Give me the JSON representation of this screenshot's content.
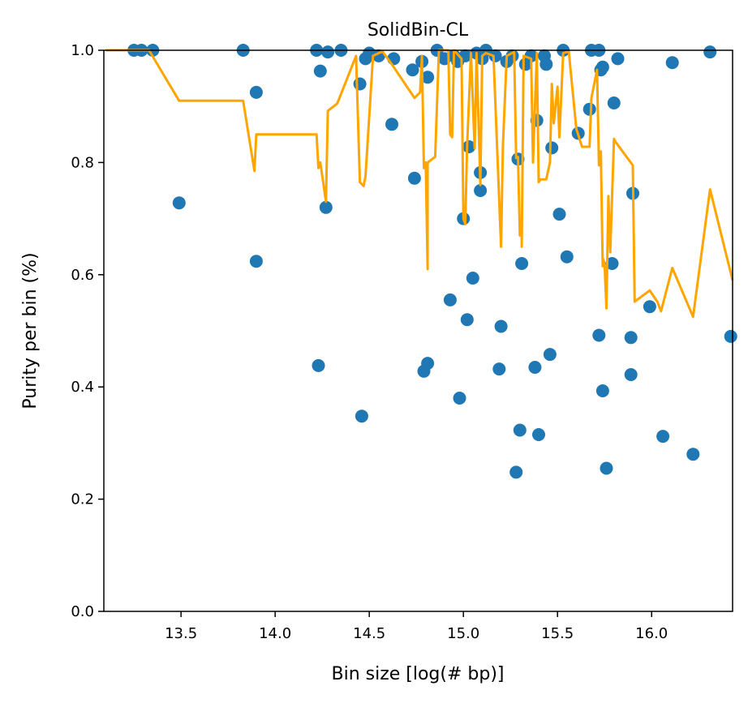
{
  "chart_data": {
    "type": "scatter",
    "title": "SolidBin-CL",
    "xlabel": "Bin size [log(# bp)]",
    "ylabel": "Purity per bin (%)",
    "xlim": [
      13.09,
      16.43
    ],
    "ylim": [
      0,
      1.0
    ],
    "x_ticks": [
      "13.5",
      "14.0",
      "14.5",
      "15.0",
      "15.5",
      "16.0"
    ],
    "y_ticks": [
      "0.0",
      "0.2",
      "0.4",
      "0.6",
      "0.8",
      "1.0"
    ],
    "grid": false,
    "legend": "none",
    "colors": {
      "points": "#1f77b4",
      "line": "#ffa500"
    },
    "series": [
      {
        "kind": "scatter",
        "points": [
          [
            13.25,
            1.0
          ],
          [
            13.29,
            1.0
          ],
          [
            13.35,
            1.0
          ],
          [
            13.49,
            0.728
          ],
          [
            13.83,
            1.0
          ],
          [
            13.9,
            0.925
          ],
          [
            13.9,
            0.624
          ],
          [
            14.22,
            1.0
          ],
          [
            14.23,
            0.438
          ],
          [
            14.24,
            0.963
          ],
          [
            14.27,
            0.72
          ],
          [
            14.28,
            0.997
          ],
          [
            14.35,
            1.0
          ],
          [
            14.45,
            0.94
          ],
          [
            14.46,
            0.348
          ],
          [
            14.48,
            0.985
          ],
          [
            14.5,
            0.995
          ],
          [
            14.55,
            0.99
          ],
          [
            14.62,
            0.868
          ],
          [
            14.63,
            0.985
          ],
          [
            14.73,
            0.965
          ],
          [
            14.74,
            0.772
          ],
          [
            14.78,
            0.98
          ],
          [
            14.79,
            0.428
          ],
          [
            14.81,
            0.442
          ],
          [
            14.81,
            0.952
          ],
          [
            14.86,
            1.0
          ],
          [
            14.9,
            0.985
          ],
          [
            14.93,
            0.555
          ],
          [
            14.95,
            0.99
          ],
          [
            14.97,
            0.98
          ],
          [
            14.98,
            0.38
          ],
          [
            15.0,
            0.7
          ],
          [
            15.01,
            0.99
          ],
          [
            15.02,
            0.52
          ],
          [
            15.03,
            0.828
          ],
          [
            15.05,
            0.594
          ],
          [
            15.07,
            0.995
          ],
          [
            15.09,
            0.782
          ],
          [
            15.09,
            0.75
          ],
          [
            15.1,
            0.985
          ],
          [
            15.12,
            1.0
          ],
          [
            15.17,
            0.99
          ],
          [
            15.19,
            0.432
          ],
          [
            15.2,
            0.508
          ],
          [
            15.23,
            0.98
          ],
          [
            15.26,
            0.99
          ],
          [
            15.28,
            0.248
          ],
          [
            15.29,
            0.806
          ],
          [
            15.3,
            0.323
          ],
          [
            15.31,
            0.62
          ],
          [
            15.33,
            0.975
          ],
          [
            15.36,
            0.99
          ],
          [
            15.38,
            0.435
          ],
          [
            15.39,
            0.875
          ],
          [
            15.4,
            0.315
          ],
          [
            15.43,
            0.99
          ],
          [
            15.44,
            0.975
          ],
          [
            15.46,
            0.458
          ],
          [
            15.47,
            0.826
          ],
          [
            15.51,
            0.708
          ],
          [
            15.53,
            1.0
          ],
          [
            15.55,
            0.632
          ],
          [
            15.61,
            0.852
          ],
          [
            15.67,
            0.895
          ],
          [
            15.68,
            1.0
          ],
          [
            15.72,
            1.0
          ],
          [
            15.72,
            0.492
          ],
          [
            15.73,
            0.965
          ],
          [
            15.74,
            0.97
          ],
          [
            15.74,
            0.393
          ],
          [
            15.76,
            0.255
          ],
          [
            15.79,
            0.62
          ],
          [
            15.8,
            0.906
          ],
          [
            15.82,
            0.985
          ],
          [
            15.89,
            0.488
          ],
          [
            15.89,
            0.422
          ],
          [
            15.9,
            0.745
          ],
          [
            15.99,
            0.543
          ],
          [
            16.06,
            0.312
          ],
          [
            16.11,
            0.978
          ],
          [
            16.22,
            0.28
          ],
          [
            16.31,
            0.997
          ],
          [
            16.42,
            0.49
          ]
        ]
      },
      {
        "kind": "line",
        "points": [
          [
            13.1,
            1.0
          ],
          [
            13.33,
            1.0
          ],
          [
            13.49,
            0.91
          ],
          [
            13.83,
            0.91
          ],
          [
            13.89,
            0.785
          ],
          [
            13.9,
            0.85
          ],
          [
            14.22,
            0.85
          ],
          [
            14.23,
            0.79
          ],
          [
            14.24,
            0.8
          ],
          [
            14.27,
            0.73
          ],
          [
            14.28,
            0.892
          ],
          [
            14.33,
            0.905
          ],
          [
            14.43,
            0.99
          ],
          [
            14.45,
            0.765
          ],
          [
            14.47,
            0.758
          ],
          [
            14.48,
            0.775
          ],
          [
            14.52,
            0.99
          ],
          [
            14.57,
            0.998
          ],
          [
            14.62,
            0.975
          ],
          [
            14.74,
            0.915
          ],
          [
            14.77,
            0.925
          ],
          [
            14.78,
            0.99
          ],
          [
            14.79,
            0.79
          ],
          [
            14.8,
            0.8
          ],
          [
            14.81,
            0.61
          ],
          [
            14.81,
            0.8
          ],
          [
            14.85,
            0.81
          ],
          [
            14.87,
            1.0
          ],
          [
            14.92,
            1.0
          ],
          [
            14.93,
            0.85
          ],
          [
            14.94,
            0.845
          ],
          [
            14.95,
            1.0
          ],
          [
            14.99,
            0.985
          ],
          [
            15.0,
            0.7
          ],
          [
            15.01,
            0.69
          ],
          [
            15.02,
            0.83
          ],
          [
            15.04,
            0.995
          ],
          [
            15.06,
            0.825
          ],
          [
            15.07,
            0.995
          ],
          [
            15.09,
            0.76
          ],
          [
            15.09,
            0.76
          ],
          [
            15.1,
            0.99
          ],
          [
            15.12,
            0.995
          ],
          [
            15.16,
            0.99
          ],
          [
            15.2,
            0.65
          ],
          [
            15.21,
            0.83
          ],
          [
            15.23,
            0.99
          ],
          [
            15.27,
            0.997
          ],
          [
            15.28,
            0.808
          ],
          [
            15.29,
            0.81
          ],
          [
            15.3,
            0.67
          ],
          [
            15.31,
            0.69
          ],
          [
            15.31,
            0.65
          ],
          [
            15.32,
            0.99
          ],
          [
            15.36,
            0.985
          ],
          [
            15.37,
            0.8
          ],
          [
            15.39,
            0.995
          ],
          [
            15.4,
            0.765
          ],
          [
            15.41,
            0.77
          ],
          [
            15.43,
            0.77
          ],
          [
            15.44,
            0.77
          ],
          [
            15.46,
            0.8
          ],
          [
            15.47,
            0.94
          ],
          [
            15.48,
            0.87
          ],
          [
            15.5,
            0.935
          ],
          [
            15.51,
            0.845
          ],
          [
            15.53,
            0.995
          ],
          [
            15.56,
            0.998
          ],
          [
            15.6,
            0.86
          ],
          [
            15.63,
            0.828
          ],
          [
            15.67,
            0.828
          ],
          [
            15.68,
            0.915
          ],
          [
            15.71,
            0.965
          ],
          [
            15.72,
            0.795
          ],
          [
            15.73,
            0.82
          ],
          [
            15.74,
            0.615
          ],
          [
            15.74,
            0.63
          ],
          [
            15.75,
            0.62
          ],
          [
            15.76,
            0.54
          ],
          [
            15.77,
            0.74
          ],
          [
            15.78,
            0.64
          ],
          [
            15.8,
            0.842
          ],
          [
            15.81,
            0.836
          ],
          [
            15.9,
            0.795
          ],
          [
            15.91,
            0.552
          ],
          [
            15.99,
            0.572
          ],
          [
            16.03,
            0.552
          ],
          [
            16.05,
            0.535
          ],
          [
            16.11,
            0.612
          ],
          [
            16.22,
            0.525
          ],
          [
            16.31,
            0.752
          ],
          [
            16.43,
            0.59
          ]
        ]
      }
    ]
  }
}
